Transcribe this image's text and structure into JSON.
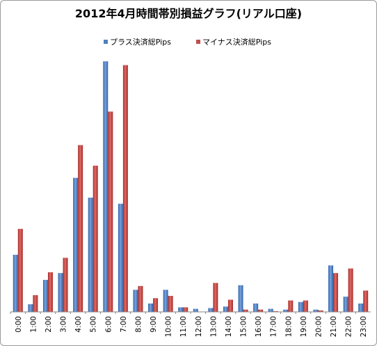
{
  "chart_data": {
    "type": "bar",
    "title": "2012年4月時間帯別損益グラフ(リアル口座)",
    "xlabel": "",
    "ylabel": "",
    "categories": [
      "0:00",
      "1:00",
      "2:00",
      "3:00",
      "4:00",
      "5:00",
      "6:00",
      "7:00",
      "8:00",
      "9:00",
      "10:00",
      "11:00",
      "12:00",
      "13:00",
      "14:00",
      "15:00",
      "16:00",
      "17:00",
      "18:00",
      "19:00",
      "20:00",
      "21:00",
      "22:00",
      "23:00"
    ],
    "series": [
      {
        "name": "プラス決済総Pips",
        "color": "#4f81bd",
        "values": [
          75,
          10,
          42,
          51,
          176,
          150,
          329,
          142,
          29,
          11,
          29,
          6,
          4,
          5,
          7,
          35,
          11,
          4,
          3,
          13,
          3,
          61,
          20,
          11
        ]
      },
      {
        "name": "マイナス決済総Pips",
        "color": "#c0504d",
        "values": [
          109,
          22,
          52,
          71,
          219,
          192,
          263,
          324,
          34,
          18,
          21,
          6,
          0,
          38,
          16,
          3,
          3,
          1,
          15,
          15,
          2,
          51,
          57,
          28
        ]
      }
    ],
    "ylim": [
      0,
      330
    ],
    "grid": false,
    "legend": "top"
  }
}
